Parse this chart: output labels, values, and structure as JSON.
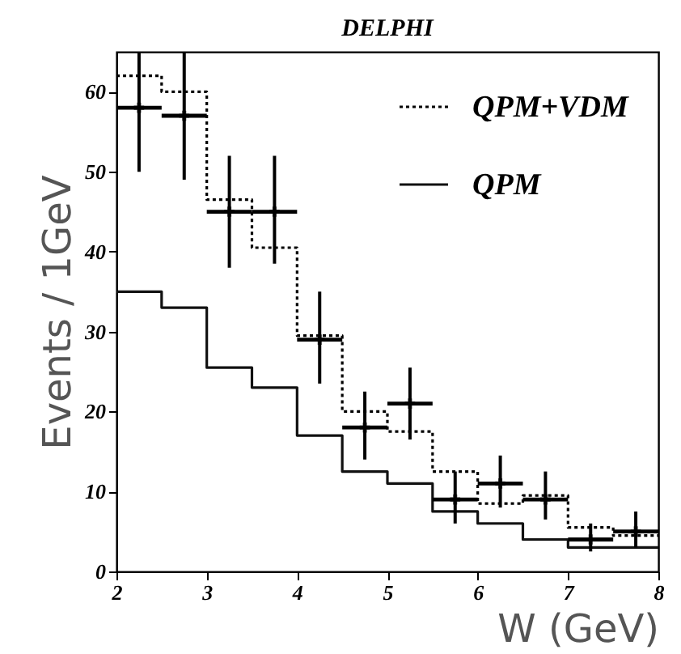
{
  "chart_data": {
    "type": "histogram",
    "title": "DELPHI",
    "xlabel": "W (GeV)",
    "ylabel": "Events / 1GeV",
    "bins": [
      2,
      2.5,
      3,
      3.5,
      4,
      4.5,
      5,
      5.5,
      6,
      6.5,
      7,
      7.5,
      8
    ],
    "series": [
      {
        "name": "QPM+VDM",
        "color": "#000000",
        "line_style": "dotted",
        "values": [
          62,
          60,
          46.5,
          40.5,
          29.5,
          20,
          17.5,
          12.5,
          8.5,
          9.5,
          5.5,
          4.5
        ]
      },
      {
        "name": "QPM",
        "color": "#111111",
        "line_style": "solid",
        "values": [
          35,
          33,
          25.5,
          23,
          17,
          12.5,
          11,
          7.5,
          6,
          4,
          3,
          3
        ]
      },
      {
        "type": "scatter",
        "color": "#000000",
        "marker": "cross",
        "x": [
          2.25,
          2.75,
          3.25,
          3.75,
          4.25,
          4.75,
          5.25,
          5.75,
          6.25,
          6.75,
          7.25,
          7.75
        ],
        "values": [
          58,
          57,
          45,
          45,
          29,
          18,
          21,
          9,
          11,
          9,
          4,
          5
        ],
        "errors": [
          [
            50,
            65
          ],
          [
            49,
            65
          ],
          [
            38,
            52
          ],
          [
            38.5,
            52
          ],
          [
            23.5,
            35
          ],
          [
            14,
            22.5
          ],
          [
            16.5,
            25.5
          ],
          [
            6,
            12.5
          ],
          [
            8,
            14.5
          ],
          [
            6.5,
            12.5
          ],
          [
            2.5,
            6
          ],
          [
            3,
            7.5
          ]
        ],
        "xerrors": [
          0.25,
          0.25,
          0.25,
          0.25,
          0.25,
          0.25,
          0.25,
          0.25,
          0.25,
          0.25,
          0.25,
          0.25
        ]
      }
    ],
    "xlim": [
      2,
      8
    ],
    "ylim": [
      0,
      65
    ],
    "xticks": [
      2,
      3,
      4,
      5,
      6,
      7,
      8
    ],
    "yticks": [
      0,
      10,
      20,
      30,
      40,
      50,
      60
    ],
    "legend": "top right",
    "grid": false
  }
}
